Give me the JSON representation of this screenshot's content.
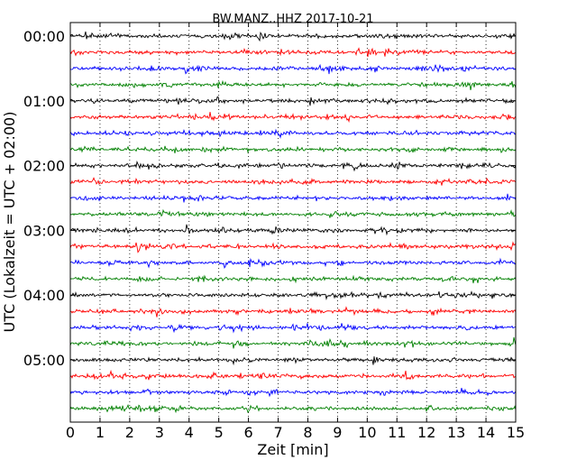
{
  "chart_data": {
    "type": "line",
    "title": "BW.MANZ..HHZ 2017-10-21",
    "xlabel": "Zeit  [min]",
    "ylabel": "UTC (Lokalzeit = UTC + 02:00)",
    "xlim": [
      0,
      15
    ],
    "x_ticks": [
      "0",
      "1",
      "2",
      "3",
      "4",
      "5",
      "6",
      "7",
      "8",
      "9",
      "10",
      "11",
      "12",
      "13",
      "14",
      "15"
    ],
    "y_tick_labels": [
      "00:00",
      "01:00",
      "02:00",
      "03:00",
      "04:00",
      "05:00"
    ],
    "grid": "vertical dotted",
    "trace_colors": [
      "#000000",
      "#ff0000",
      "#0000ff",
      "#008000"
    ],
    "trace_count": 24,
    "trace_interval_minutes": 15
  }
}
